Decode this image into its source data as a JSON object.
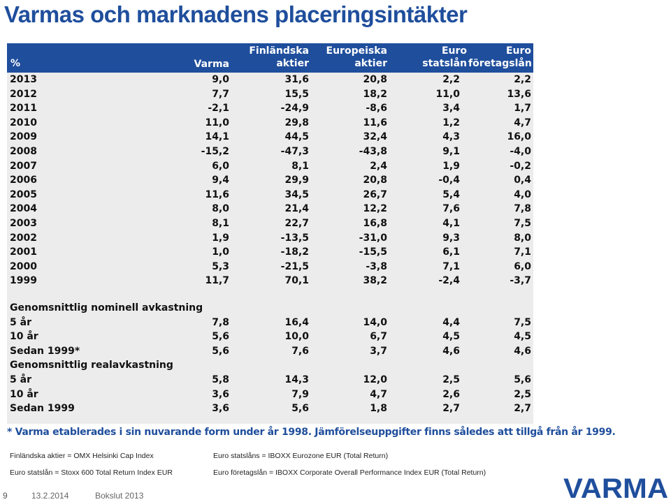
{
  "title": "Varmas och marknadens placeringsintäkter",
  "table": {
    "headers": {
      "pct": "%",
      "varma": "Varma",
      "fin_1": "Finländska",
      "fin_2": "aktier",
      "eur_1": "Europeiska",
      "eur_2": "aktier",
      "stat_1": "Euro",
      "stat_2": "statslån",
      "for_1": "Euro",
      "for_2": "företagslån"
    },
    "years": [
      {
        "label": "2013",
        "v": [
          "9,0",
          "31,6",
          "20,8",
          "2,2",
          "2,2"
        ]
      },
      {
        "label": "2012",
        "v": [
          "7,7",
          "15,5",
          "18,2",
          "11,0",
          "13,6"
        ]
      },
      {
        "label": "2011",
        "v": [
          "-2,1",
          "-24,9",
          "-8,6",
          "3,4",
          "1,7"
        ]
      },
      {
        "label": "2010",
        "v": [
          "11,0",
          "29,8",
          "11,6",
          "1,2",
          "4,7"
        ]
      },
      {
        "label": "2009",
        "v": [
          "14,1",
          "44,5",
          "32,4",
          "4,3",
          "16,0"
        ]
      },
      {
        "label": "2008",
        "v": [
          "-15,2",
          "-47,3",
          "-43,8",
          "9,1",
          "-4,0"
        ]
      },
      {
        "label": "2007",
        "v": [
          "6,0",
          "8,1",
          "2,4",
          "1,9",
          "-0,2"
        ]
      },
      {
        "label": "2006",
        "v": [
          "9,4",
          "29,9",
          "20,8",
          "-0,4",
          "0,4"
        ]
      },
      {
        "label": "2005",
        "v": [
          "11,6",
          "34,5",
          "26,7",
          "5,4",
          "4,0"
        ]
      },
      {
        "label": "2004",
        "v": [
          "8,0",
          "21,4",
          "12,2",
          "7,6",
          "7,8"
        ]
      },
      {
        "label": "2003",
        "v": [
          "8,1",
          "22,7",
          "16,8",
          "4,1",
          "7,5"
        ]
      },
      {
        "label": "2002",
        "v": [
          "1,9",
          "-13,5",
          "-31,0",
          "9,3",
          "8,0"
        ]
      },
      {
        "label": "2001",
        "v": [
          "1,0",
          "-18,2",
          "-15,5",
          "6,1",
          "7,1"
        ]
      },
      {
        "label": "2000",
        "v": [
          "5,3",
          "-21,5",
          "-3,8",
          "7,1",
          "6,0"
        ]
      },
      {
        "label": "1999",
        "v": [
          "11,7",
          "70,1",
          "38,2",
          "-2,4",
          "-3,7"
        ]
      }
    ],
    "nominal_title": "Genomsnittlig nominell avkastning",
    "nominal": [
      {
        "label": "5 år",
        "v": [
          "7,8",
          "16,4",
          "14,0",
          "4,4",
          "7,5"
        ]
      },
      {
        "label": "10 år",
        "v": [
          "5,6",
          "10,0",
          "6,7",
          "4,5",
          "4,5"
        ]
      },
      {
        "label": "Sedan 1999*",
        "v": [
          "5,6",
          "7,6",
          "3,7",
          "4,6",
          "4,6"
        ]
      }
    ],
    "real_title": "Genomsnittlig realavkastning",
    "real": [
      {
        "label": "5 år",
        "v": [
          "5,8",
          "14,3",
          "12,0",
          "2,5",
          "5,6"
        ]
      },
      {
        "label": "10 år",
        "v": [
          "3,6",
          "7,9",
          "4,7",
          "2,6",
          "2,5"
        ]
      },
      {
        "label": "Sedan 1999",
        "v": [
          "3,6",
          "5,6",
          "1,8",
          "2,7",
          "2,7"
        ]
      }
    ]
  },
  "footnote": "* Varma etablerades i sin nuvarande form  under år 1998. Jämförelseuppgifter finns således att tillgå från år 1999.",
  "sources": {
    "left_1": "Finländska aktier = OMX Helsinki Cap Index",
    "left_2": "Euro statslån =  Stoxx 600 Total Return Index EUR",
    "right_1": "Euro statslåns = IBOXX Eurozone EUR (Total Return)",
    "right_2": "Euro företagslån = IBOXX Corporate Overall Performance Index EUR (Total Return)"
  },
  "footer": {
    "page_number": "9",
    "date": "13.2.2014",
    "subtitle": "Bokslut 2013"
  },
  "logo": {
    "text": "VARMA",
    "color": "#1f4e9c"
  }
}
